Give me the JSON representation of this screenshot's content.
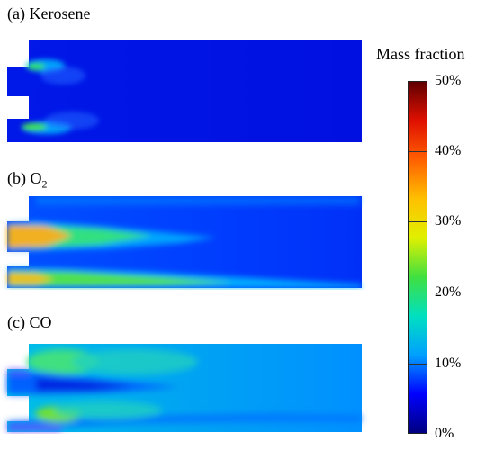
{
  "panels": [
    {
      "letter": "(a)",
      "species": "Kerosene",
      "subscript": ""
    },
    {
      "letter": "(b)",
      "species": "O",
      "subscript": "2"
    },
    {
      "letter": "(c)",
      "species": "CO",
      "subscript": ""
    }
  ],
  "colorbar": {
    "title": "Mass fraction",
    "min": 0,
    "max": 50,
    "ticks": [
      "50%",
      "40%",
      "30%",
      "20%",
      "10%",
      "0%"
    ],
    "colors": [
      "#000080",
      "#0000ff",
      "#00a0ff",
      "#00e0c0",
      "#40e040",
      "#e0f000",
      "#ffc000",
      "#ff6000",
      "#e01000",
      "#600000"
    ]
  }
}
